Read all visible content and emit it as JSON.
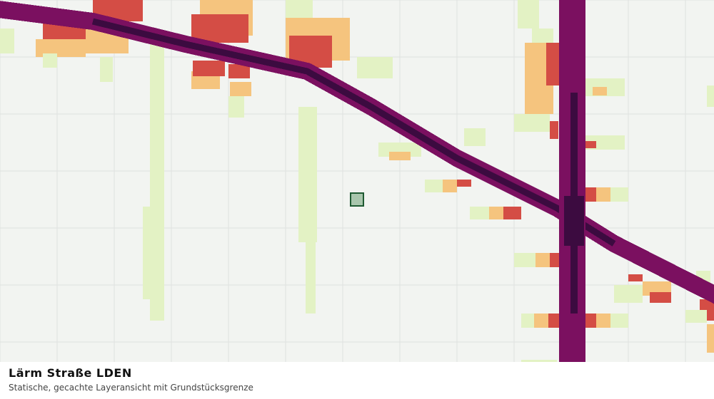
{
  "layer": {
    "title": "Lärm Straße LDEN",
    "subtitle": "Statische, gecachte Layeransicht mit Grundstücksgrenze"
  }
}
